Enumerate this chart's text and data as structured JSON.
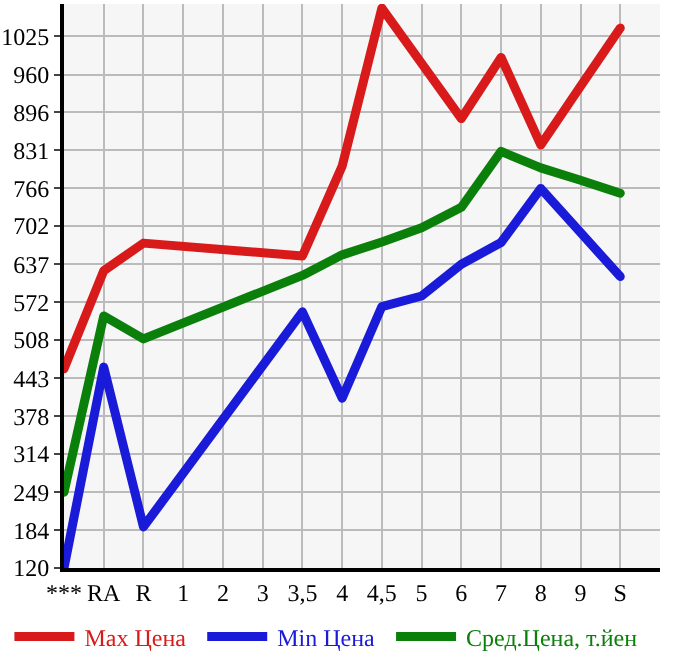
{
  "chart_data": {
    "type": "line",
    "categories": [
      "***",
      "RA",
      "R",
      "1",
      "2",
      "3",
      "3,5",
      "4",
      "4,5",
      "5",
      "6",
      "7",
      "8",
      "9",
      "S"
    ],
    "series": [
      {
        "name": "Max Цена",
        "color": "#d91a1a",
        "values": [
          459,
          626,
          673,
          null,
          null,
          null,
          651,
          804,
          1073,
          979,
          885,
          989,
          840,
          940,
          1039
        ]
      },
      {
        "name": "Min Цена",
        "color": "#1a1ad9",
        "values": [
          120,
          462,
          190,
          null,
          null,
          null,
          556,
          409,
          565,
          583,
          637,
          674,
          766,
          691,
          616
        ]
      },
      {
        "name": "Сред.Цена, т.йен",
        "color": "#0a800a",
        "values": [
          249,
          549,
          510,
          null,
          null,
          null,
          618,
          653,
          675,
          699,
          734,
          829,
          801,
          780,
          758
        ]
      }
    ],
    "ylim": [
      120,
      1080
    ],
    "yticks": [
      120,
      184,
      249,
      314,
      378,
      443,
      508,
      572,
      637,
      702,
      766,
      831,
      896,
      960,
      1025
    ],
    "grid": true,
    "legend": "bottom",
    "marker": "none",
    "line_style": "solid"
  }
}
